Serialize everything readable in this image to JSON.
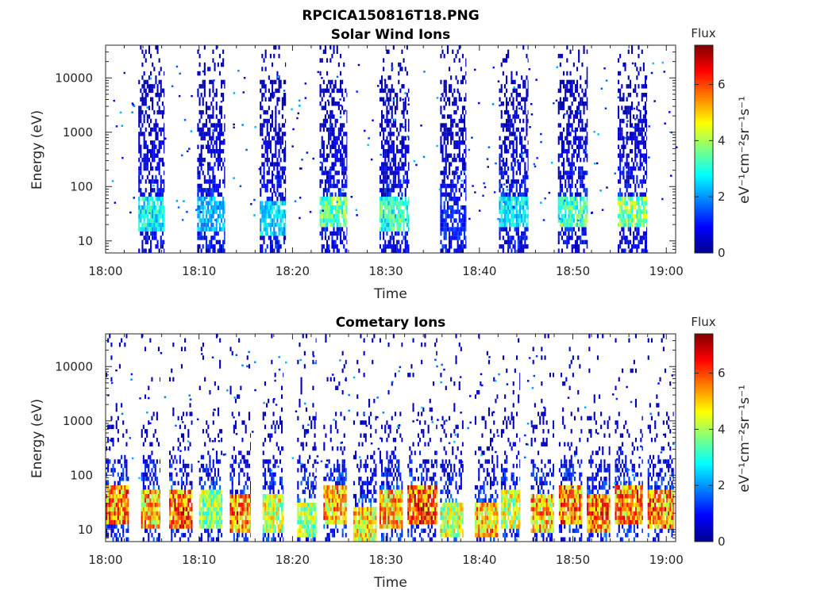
{
  "figure_title": "RPCICA150816T18.PNG",
  "colorbar": {
    "title": "Flux",
    "label": "eV⁻¹cm⁻²sr⁻¹s⁻¹",
    "min": 0,
    "max": 7.4,
    "ticks": [
      "0",
      "2",
      "4",
      "6"
    ],
    "colormap": "jet"
  },
  "chart_data": [
    {
      "type": "heatmap",
      "title": "Solar Wind Ions",
      "xlabel": "Time",
      "ylabel": "Energy (eV)",
      "yscale": "log",
      "xlim": [
        "18:00",
        "19:01"
      ],
      "ylim": [
        6,
        40000
      ],
      "xticks": [
        "18:00",
        "18:10",
        "18:20",
        "18:30",
        "18:40",
        "18:50",
        "19:00"
      ],
      "yticks": [
        "10",
        "100",
        "1000",
        "10000"
      ],
      "bursts": [
        {
          "start": "18:03.5",
          "end": "18:06.3",
          "peak_energy_eV": 30,
          "peak_flux": 3.5
        },
        {
          "start": "18:09.8",
          "end": "18:12.8",
          "peak_energy_eV": 30,
          "peak_flux": 2.8
        },
        {
          "start": "18:16.5",
          "end": "18:19.3",
          "peak_energy_eV": 25,
          "peak_flux": 3.2
        },
        {
          "start": "18:22.9",
          "end": "18:25.8",
          "peak_energy_eV": 35,
          "peak_flux": 4.5
        },
        {
          "start": "18:29.3",
          "end": "18:32.5",
          "peak_energy_eV": 30,
          "peak_flux": 4.0
        },
        {
          "start": "18:35.8",
          "end": "18:38.6",
          "peak_energy_eV": 20,
          "peak_flux": 1.5
        },
        {
          "start": "18:42.1",
          "end": "18:45.2",
          "peak_energy_eV": 35,
          "peak_flux": 3.5
        },
        {
          "start": "18:48.4",
          "end": "18:51.6",
          "peak_energy_eV": 35,
          "peak_flux": 4.2
        },
        {
          "start": "18:54.8",
          "end": "18:57.9",
          "peak_energy_eV": 35,
          "peak_flux": 4.8
        }
      ]
    },
    {
      "type": "heatmap",
      "title": "Cometary Ions",
      "xlabel": "Time",
      "ylabel": "Energy (eV)",
      "yscale": "log",
      "xlim": [
        "18:00",
        "19:01"
      ],
      "ylim": [
        6,
        40000
      ],
      "xticks": [
        "18:00",
        "18:10",
        "18:20",
        "18:30",
        "18:40",
        "18:50",
        "19:00"
      ],
      "yticks": [
        "10",
        "100",
        "1000",
        "10000"
      ],
      "bursts": [
        {
          "start": "18:00.0",
          "end": "18:02.5",
          "peak_energy_eV": 30,
          "peak_flux": 7.0
        },
        {
          "start": "18:03.8",
          "end": "18:05.8",
          "peak_energy_eV": 25,
          "peak_flux": 6.5
        },
        {
          "start": "18:06.8",
          "end": "18:09.3",
          "peak_energy_eV": 25,
          "peak_flux": 7.2
        },
        {
          "start": "18:10.0",
          "end": "18:12.5",
          "peak_energy_eV": 25,
          "peak_flux": 5.0
        },
        {
          "start": "18:13.3",
          "end": "18:15.5",
          "peak_energy_eV": 20,
          "peak_flux": 7.0
        },
        {
          "start": "18:16.8",
          "end": "18:19.0",
          "peak_energy_eV": 20,
          "peak_flux": 5.5
        },
        {
          "start": "18:20.5",
          "end": "18:22.5",
          "peak_energy_eV": 15,
          "peak_flux": 5.0
        },
        {
          "start": "18:23.3",
          "end": "18:25.8",
          "peak_energy_eV": 30,
          "peak_flux": 6.5
        },
        {
          "start": "18:26.5",
          "end": "18:29.0",
          "peak_energy_eV": 12,
          "peak_flux": 6.0
        },
        {
          "start": "18:29.3",
          "end": "18:31.8",
          "peak_energy_eV": 25,
          "peak_flux": 6.5
        },
        {
          "start": "18:32.3",
          "end": "18:35.5",
          "peak_energy_eV": 30,
          "peak_flux": 7.4
        },
        {
          "start": "18:35.8",
          "end": "18:38.3",
          "peak_energy_eV": 15,
          "peak_flux": 5.5
        },
        {
          "start": "18:39.5",
          "end": "18:42.0",
          "peak_energy_eV": 15,
          "peak_flux": 6.5
        },
        {
          "start": "18:42.3",
          "end": "18:44.3",
          "peak_energy_eV": 25,
          "peak_flux": 5.5
        },
        {
          "start": "18:45.5",
          "end": "18:48.0",
          "peak_energy_eV": 20,
          "peak_flux": 6.5
        },
        {
          "start": "18:48.5",
          "end": "18:51.0",
          "peak_energy_eV": 30,
          "peak_flux": 7.0
        },
        {
          "start": "18:51.5",
          "end": "18:54.0",
          "peak_energy_eV": 20,
          "peak_flux": 7.2
        },
        {
          "start": "18:54.5",
          "end": "18:57.5",
          "peak_energy_eV": 30,
          "peak_flux": 7.0
        },
        {
          "start": "18:58.0",
          "end": "19:00.8",
          "peak_energy_eV": 25,
          "peak_flux": 7.0
        }
      ]
    }
  ]
}
